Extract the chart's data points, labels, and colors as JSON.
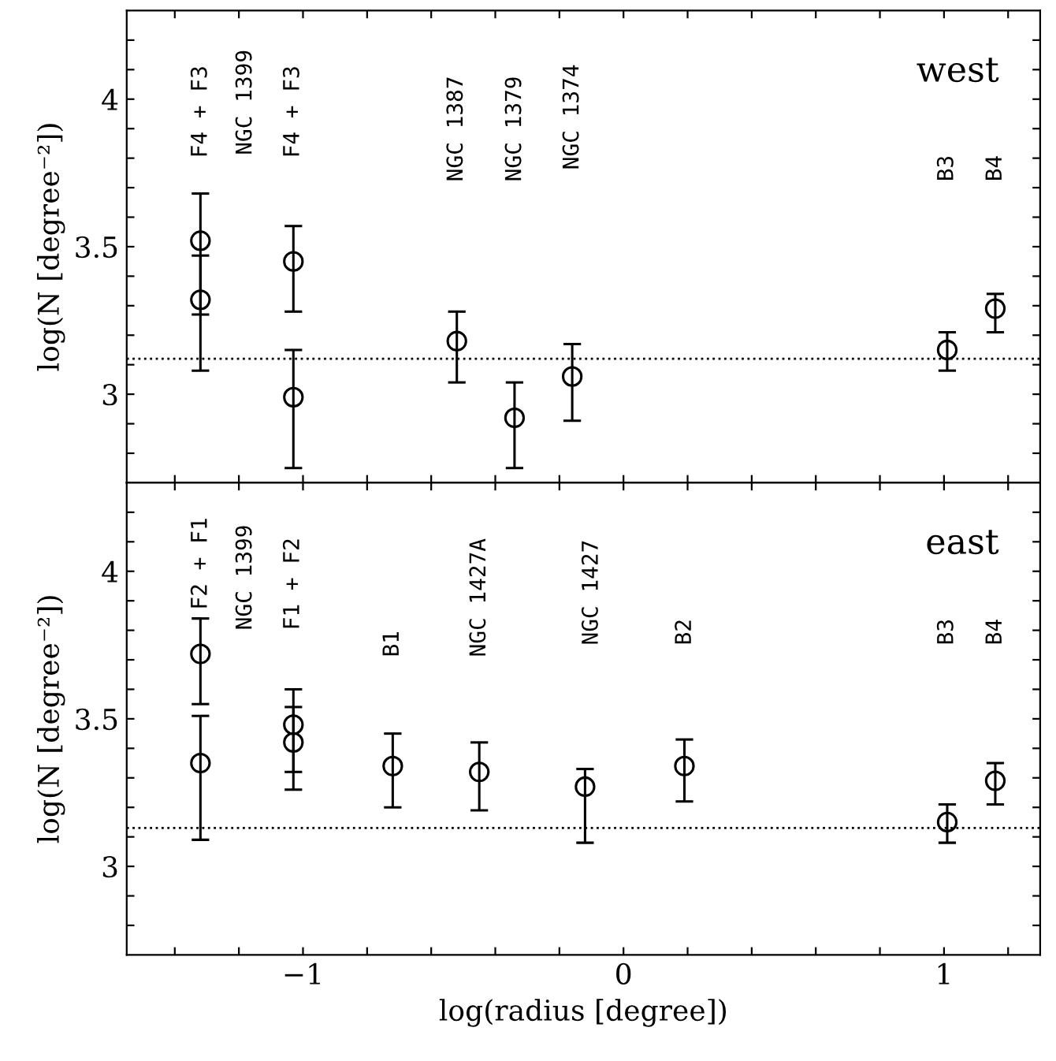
{
  "chart_data": [
    {
      "type": "scatter",
      "ylabel": "log(N [degree⁻²])",
      "annotations": [
        "west",
        "F4 + F3",
        "NGC 1399",
        "F4 + F3",
        "NGC 1387",
        "NGC 1379",
        "NGC 1374",
        "B3",
        "B4"
      ],
      "series": [
        {
          "color": "#000000",
          "x": [
            -1.32,
            -1.32,
            -1.03,
            -1.03,
            -0.52,
            -0.34,
            -0.16,
            1.01,
            1.16
          ],
          "values": [
            3.52,
            3.32,
            3.45,
            2.99,
            3.18,
            2.92,
            3.06,
            3.15,
            3.29
          ],
          "errors": [
            [
              3.27,
              3.68
            ],
            [
              3.08,
              3.47
            ],
            [
              3.28,
              3.57
            ],
            [
              2.75,
              3.15
            ],
            [
              3.04,
              3.28
            ],
            [
              2.75,
              3.04
            ],
            [
              2.91,
              3.17
            ],
            [
              3.08,
              3.21
            ],
            [
              3.21,
              3.34
            ]
          ]
        }
      ],
      "marker": "circle",
      "ref_lines": [
        {
          "axis": "y",
          "value": 3.12,
          "line_style": "dotted",
          "color": "#000000"
        }
      ],
      "xlim": [
        -1.55,
        1.3
      ],
      "ylim": [
        2.7,
        4.3
      ],
      "xticks": [
        {
          "value": -1.4,
          "label": null
        },
        {
          "value": -1.2,
          "label": null
        },
        {
          "value": -1,
          "label": null
        },
        {
          "value": -0.8,
          "label": null
        },
        {
          "value": -0.6,
          "label": null
        },
        {
          "value": -0.4,
          "label": null
        },
        {
          "value": -0.2,
          "label": null
        },
        {
          "value": 0,
          "label": null
        },
        {
          "value": 0.2,
          "label": null
        },
        {
          "value": 0.4,
          "label": null
        },
        {
          "value": 0.6,
          "label": null
        },
        {
          "value": 0.8,
          "label": null
        },
        {
          "value": 1,
          "label": null
        },
        {
          "value": 1.2,
          "label": null
        }
      ],
      "yticks": [
        {
          "value": 2.8,
          "label": null
        },
        {
          "value": 2.9,
          "label": null
        },
        3,
        {
          "value": 3.1,
          "label": null
        },
        {
          "value": 3.2,
          "label": null
        },
        {
          "value": 3.3,
          "label": null
        },
        {
          "value": 3.4,
          "label": null
        },
        3.5,
        {
          "value": 3.6,
          "label": null
        },
        {
          "value": 3.7,
          "label": null
        },
        {
          "value": 3.8,
          "label": null
        },
        {
          "value": 3.9,
          "label": null
        },
        4,
        {
          "value": 4.1,
          "label": null
        },
        {
          "value": 4.2,
          "label": null
        }
      ],
      "tick_labels": "y",
      "grid": false,
      "legend": false
    },
    {
      "type": "scatter",
      "xlabel": "log(radius [degree])",
      "ylabel": "log(N [degree⁻²])",
      "annotations": [
        "east",
        "F2 + F1",
        "NGC 1399",
        "F1 + F2",
        "B1",
        "NGC 1427A",
        "NGC 1427",
        "B2",
        "B3",
        "B4"
      ],
      "series": [
        {
          "color": "#000000",
          "x": [
            -1.32,
            -1.32,
            -1.03,
            -1.03,
            -0.72,
            -0.45,
            -0.12,
            0.19,
            1.01,
            1.16
          ],
          "values": [
            3.72,
            3.35,
            3.48,
            3.42,
            3.34,
            3.32,
            3.27,
            3.34,
            3.15,
            3.29
          ],
          "errors": [
            [
              3.55,
              3.84
            ],
            [
              3.09,
              3.51
            ],
            [
              3.32,
              3.6
            ],
            [
              3.26,
              3.54
            ],
            [
              3.2,
              3.45
            ],
            [
              3.19,
              3.42
            ],
            [
              3.08,
              3.33
            ],
            [
              3.22,
              3.43
            ],
            [
              3.08,
              3.21
            ],
            [
              3.21,
              3.35
            ]
          ]
        }
      ],
      "marker": "circle",
      "ref_lines": [
        {
          "axis": "y",
          "value": 3.13,
          "line_style": "dotted",
          "color": "#000000"
        }
      ],
      "xlim": [
        -1.55,
        1.3
      ],
      "ylim": [
        2.7,
        4.3
      ],
      "xticks": [
        {
          "value": -1.4,
          "label": null
        },
        {
          "value": -1.2,
          "label": null
        },
        {
          "value": -1,
          "label": "−1"
        },
        {
          "value": -0.8,
          "label": null
        },
        {
          "value": -0.6,
          "label": null
        },
        {
          "value": -0.4,
          "label": null
        },
        {
          "value": -0.2,
          "label": null
        },
        {
          "value": 0,
          "label": "0"
        },
        {
          "value": 0.2,
          "label": null
        },
        {
          "value": 0.4,
          "label": null
        },
        {
          "value": 0.6,
          "label": null
        },
        {
          "value": 0.8,
          "label": null
        },
        {
          "value": 1,
          "label": "1"
        },
        {
          "value": 1.2,
          "label": null
        }
      ],
      "yticks": [
        {
          "value": 2.8,
          "label": null
        },
        {
          "value": 2.9,
          "label": null
        },
        3,
        {
          "value": 3.1,
          "label": null
        },
        {
          "value": 3.2,
          "label": null
        },
        {
          "value": 3.3,
          "label": null
        },
        {
          "value": 3.4,
          "label": null
        },
        3.5,
        {
          "value": 3.6,
          "label": null
        },
        {
          "value": 3.7,
          "label": null
        },
        {
          "value": 3.8,
          "label": null
        },
        {
          "value": 3.9,
          "label": null
        },
        4,
        {
          "value": 4.1,
          "label": null
        },
        {
          "value": 4.2,
          "label": null
        }
      ],
      "grid": false,
      "legend": false
    }
  ]
}
